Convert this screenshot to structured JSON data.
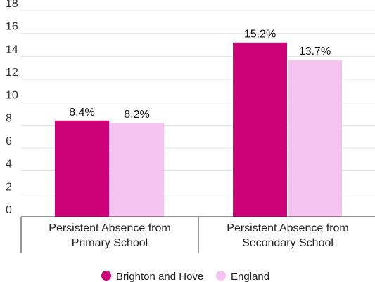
{
  "chart_data": {
    "type": "bar",
    "title": "",
    "xlabel": "",
    "ylabel": "",
    "ylim": [
      0,
      18
    ],
    "yticks": [
      0,
      2,
      4,
      6,
      8,
      10,
      12,
      14,
      16,
      18
    ],
    "grid": true,
    "legend_position": "bottom",
    "categories": [
      [
        "Persistent Absence from",
        "Primary School"
      ],
      [
        "Persistent Absence from",
        "Secondary School"
      ]
    ],
    "series": [
      {
        "name": "Brighton and Hove",
        "color": "#cc0077",
        "values": [
          8.4,
          15.2
        ],
        "labels": [
          "8.4%",
          "15.2%"
        ]
      },
      {
        "name": "England",
        "color": "#f5c3ef",
        "values": [
          8.2,
          13.7
        ],
        "labels": [
          "8.2%",
          "13.7%"
        ]
      }
    ]
  }
}
